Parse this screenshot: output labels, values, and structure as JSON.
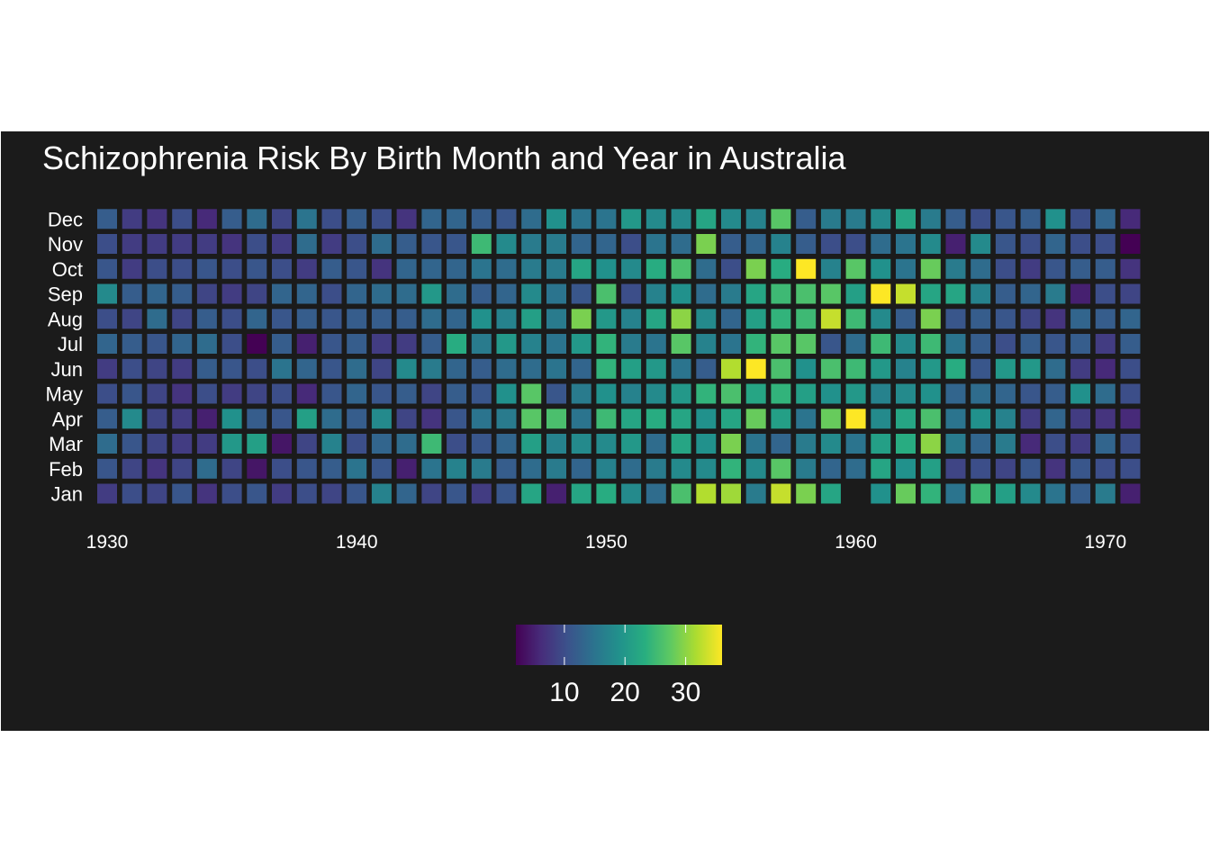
{
  "chart_data": {
    "type": "heatmap",
    "title": "Schizophrenia Risk By Birth Month and Year in Australia",
    "xlabel": "",
    "ylabel": "",
    "x_ticks": [
      1930,
      1940,
      1950,
      1960,
      1970
    ],
    "years": [
      1930,
      1931,
      1932,
      1933,
      1934,
      1935,
      1936,
      1937,
      1938,
      1939,
      1940,
      1941,
      1942,
      1943,
      1944,
      1945,
      1946,
      1947,
      1948,
      1949,
      1950,
      1951,
      1952,
      1953,
      1954,
      1955,
      1956,
      1957,
      1958,
      1959,
      1960,
      1961,
      1962,
      1963,
      1964,
      1965,
      1966,
      1967,
      1968,
      1969,
      1970,
      1971
    ],
    "months": [
      "Jan",
      "Feb",
      "Mar",
      "Apr",
      "May",
      "Jun",
      "Jul",
      "Aug",
      "Sep",
      "Oct",
      "Nov",
      "Dec"
    ],
    "colorscale": "viridis",
    "color_range": [
      2,
      36
    ],
    "colorbar": {
      "ticks": [
        10,
        20,
        30
      ],
      "position": "bottom"
    },
    "grid": false,
    "background": "#1b1b1b",
    "values": {
      "Jan": [
        8,
        10,
        9,
        11,
        7,
        10,
        11,
        8,
        10,
        9,
        11,
        17,
        13,
        9,
        11,
        8,
        11,
        22,
        5,
        22,
        23,
        18,
        14,
        26,
        32,
        31,
        16,
        33,
        29,
        22,
        null,
        19,
        28,
        24,
        15,
        25,
        21,
        18,
        15,
        12,
        16,
        5
      ],
      "Feb": [
        11,
        9,
        7,
        9,
        14,
        9,
        4,
        10,
        11,
        12,
        15,
        11,
        5,
        15,
        17,
        16,
        12,
        14,
        16,
        13,
        17,
        14,
        16,
        18,
        18,
        24,
        18,
        27,
        16,
        13,
        14,
        22,
        19,
        21,
        9,
        10,
        9,
        11,
        7,
        11,
        10,
        10
      ],
      "Mar": [
        14,
        11,
        9,
        8,
        8,
        20,
        21,
        4,
        9,
        17,
        10,
        13,
        14,
        25,
        10,
        11,
        13,
        21,
        17,
        18,
        18,
        20,
        14,
        22,
        19,
        29,
        15,
        13,
        16,
        18,
        15,
        21,
        23,
        30,
        16,
        13,
        16,
        6,
        10,
        8,
        13,
        10
      ],
      "Apr": [
        12,
        18,
        9,
        8,
        5,
        19,
        12,
        11,
        21,
        14,
        12,
        18,
        9,
        7,
        11,
        15,
        16,
        27,
        26,
        15,
        25,
        22,
        23,
        22,
        19,
        22,
        28,
        21,
        15,
        28,
        36,
        18,
        22,
        26,
        15,
        19,
        17,
        8,
        13,
        8,
        7,
        6
      ],
      "May": [
        10,
        11,
        9,
        7,
        10,
        8,
        9,
        10,
        6,
        11,
        13,
        11,
        12,
        9,
        12,
        11,
        19,
        27,
        11,
        16,
        19,
        17,
        18,
        20,
        24,
        26,
        22,
        24,
        21,
        19,
        20,
        17,
        18,
        19,
        13,
        14,
        13,
        11,
        12,
        19,
        14,
        10
      ],
      "Jun": [
        8,
        10,
        9,
        8,
        12,
        11,
        10,
        15,
        13,
        11,
        14,
        9,
        18,
        16,
        13,
        12,
        14,
        14,
        15,
        13,
        24,
        21,
        20,
        15,
        12,
        32,
        36,
        26,
        19,
        26,
        25,
        20,
        17,
        20,
        23,
        11,
        20,
        20,
        14,
        8,
        6,
        10
      ],
      "Jul": [
        13,
        12,
        11,
        13,
        14,
        10,
        2,
        12,
        5,
        11,
        12,
        8,
        8,
        12,
        23,
        16,
        20,
        17,
        15,
        20,
        24,
        16,
        15,
        27,
        17,
        15,
        24,
        27,
        27,
        11,
        14,
        25,
        18,
        25,
        15,
        12,
        10,
        12,
        11,
        12,
        8,
        12
      ],
      "Aug": [
        10,
        9,
        14,
        9,
        12,
        10,
        13,
        11,
        12,
        11,
        12,
        12,
        12,
        14,
        13,
        19,
        17,
        21,
        16,
        29,
        20,
        17,
        22,
        30,
        18,
        13,
        21,
        24,
        25,
        33,
        25,
        18,
        12,
        29,
        11,
        12,
        11,
        9,
        7,
        13,
        12,
        13
      ],
      "Sep": [
        18,
        12,
        13,
        12,
        9,
        8,
        9,
        13,
        13,
        10,
        13,
        14,
        14,
        20,
        14,
        12,
        13,
        18,
        15,
        11,
        26,
        10,
        17,
        19,
        14,
        16,
        22,
        25,
        26,
        27,
        21,
        36,
        33,
        22,
        22,
        17,
        12,
        13,
        16,
        5,
        10,
        9
      ],
      "Oct": [
        11,
        8,
        10,
        10,
        11,
        10,
        11,
        10,
        8,
        12,
        11,
        7,
        13,
        13,
        13,
        15,
        14,
        16,
        16,
        22,
        19,
        18,
        23,
        26,
        14,
        10,
        29,
        23,
        36,
        17,
        27,
        19,
        15,
        28,
        16,
        14,
        10,
        8,
        11,
        12,
        12,
        7
      ],
      "Nov": [
        10,
        8,
        8,
        8,
        8,
        7,
        10,
        8,
        14,
        8,
        10,
        14,
        12,
        11,
        11,
        25,
        18,
        16,
        16,
        13,
        13,
        10,
        15,
        14,
        29,
        12,
        13,
        17,
        12,
        10,
        10,
        14,
        15,
        18,
        5,
        18,
        11,
        10,
        13,
        10,
        10,
        2
      ],
      "Dec": [
        12,
        8,
        7,
        10,
        6,
        12,
        14,
        9,
        15,
        10,
        12,
        10,
        7,
        13,
        13,
        12,
        11,
        14,
        19,
        15,
        15,
        20,
        18,
        18,
        22,
        18,
        17,
        27,
        12,
        16,
        16,
        18,
        22,
        16,
        12,
        10,
        11,
        12,
        19,
        10,
        13,
        6
      ]
    }
  }
}
